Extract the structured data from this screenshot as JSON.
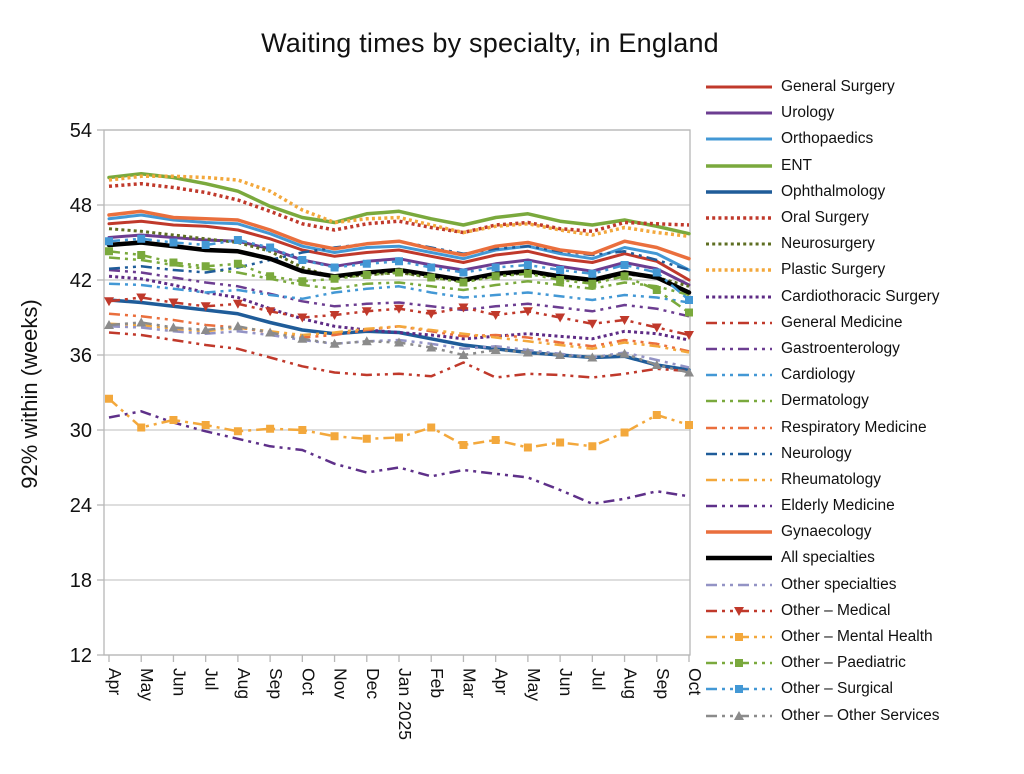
{
  "title": "Waiting times by specialty, in England",
  "chart_data": {
    "type": "line",
    "title": "Waiting times by specialty, in England",
    "xlabel": "",
    "ylabel": "92% within (weeks)",
    "ylim": [
      12,
      54
    ],
    "yticks": [
      12,
      18,
      24,
      30,
      36,
      42,
      48,
      54
    ],
    "grid": "horizontal",
    "legend_position": "right",
    "x": [
      "Apr",
      "May",
      "Jun",
      "Jul",
      "Aug",
      "Sep",
      "Oct",
      "Nov",
      "Dec",
      "Jan 2025",
      "Feb",
      "Mar",
      "Apr",
      "May",
      "Jun",
      "Jul",
      "Aug",
      "Sep",
      "Oct"
    ],
    "series": [
      {
        "name": "General Surgery",
        "color": "#c0392b",
        "style": "solid",
        "width": 3,
        "marker": "none",
        "values": [
          46.5,
          46.7,
          46.4,
          46.3,
          46.0,
          45.3,
          44.4,
          43.9,
          44.2,
          44.4,
          43.9,
          43.4,
          44.0,
          44.3,
          43.7,
          43.4,
          44.1,
          43.5,
          42.0
        ]
      },
      {
        "name": "Urology",
        "color": "#6c3d91",
        "style": "solid",
        "width": 3,
        "marker": "none",
        "values": [
          45.4,
          45.6,
          45.4,
          45.2,
          45.1,
          44.5,
          43.6,
          43.1,
          43.5,
          43.7,
          43.2,
          42.8,
          43.3,
          43.6,
          43.1,
          42.7,
          43.4,
          42.9,
          41.6
        ]
      },
      {
        "name": "Orthopaedics",
        "color": "#4398d5",
        "style": "solid",
        "width": 3,
        "marker": "none",
        "values": [
          46.9,
          47.2,
          46.8,
          46.6,
          46.5,
          45.7,
          44.7,
          44.2,
          44.6,
          44.7,
          44.2,
          43.7,
          44.4,
          44.7,
          44.1,
          43.7,
          44.6,
          44.1,
          42.8
        ]
      },
      {
        "name": "ENT",
        "color": "#7aa93d",
        "style": "solid",
        "width": 3.5,
        "marker": "none",
        "values": [
          50.2,
          50.5,
          50.2,
          49.7,
          49.1,
          47.9,
          47.0,
          46.6,
          47.3,
          47.5,
          46.9,
          46.4,
          47.0,
          47.3,
          46.7,
          46.4,
          46.8,
          46.3,
          45.7
        ]
      },
      {
        "name": "Ophthalmology",
        "color": "#1f5c99",
        "style": "solid",
        "width": 3.5,
        "marker": "none",
        "values": [
          40.4,
          40.2,
          39.9,
          39.6,
          39.3,
          38.6,
          38.0,
          37.7,
          37.9,
          37.8,
          37.3,
          36.8,
          36.5,
          36.2,
          36.0,
          35.8,
          35.9,
          35.2,
          34.8
        ]
      },
      {
        "name": "Oral Surgery",
        "color": "#c0392b",
        "style": "dotted",
        "width": 3.5,
        "marker": "none",
        "values": [
          49.5,
          49.7,
          49.4,
          49.0,
          48.4,
          47.5,
          46.5,
          46.0,
          46.5,
          46.7,
          46.2,
          45.8,
          46.4,
          46.6,
          46.1,
          45.9,
          46.6,
          46.5,
          46.4
        ]
      },
      {
        "name": "Neurosurgery",
        "color": "#5e6e22",
        "style": "dotted",
        "width": 3,
        "marker": "none",
        "values": [
          46.1,
          45.9,
          45.6,
          45.3,
          45.0,
          44.3,
          43.0,
          42.2,
          42.4,
          42.6,
          42.2,
          41.9,
          42.3,
          42.6,
          42.2,
          41.9,
          42.5,
          42.2,
          41.5
        ]
      },
      {
        "name": "Plastic Surgery",
        "color": "#f3a83c",
        "style": "dotted",
        "width": 3.5,
        "marker": "none",
        "values": [
          50.0,
          50.3,
          50.3,
          50.2,
          50.0,
          49.1,
          47.6,
          46.6,
          46.9,
          47.0,
          46.4,
          45.8,
          46.3,
          46.5,
          46.0,
          45.6,
          46.2,
          45.8,
          45.5
        ]
      },
      {
        "name": "Cardiothoracic Surgery",
        "color": "#5e2b85",
        "style": "dotted",
        "width": 3,
        "marker": "none",
        "values": [
          42.3,
          42.1,
          41.6,
          41.0,
          40.6,
          39.7,
          38.9,
          38.3,
          38.0,
          37.8,
          37.6,
          37.3,
          37.5,
          37.7,
          37.5,
          37.3,
          37.9,
          37.7,
          37.2
        ]
      },
      {
        "name": "General Medicine",
        "color": "#c0392b",
        "style": "dashdot",
        "width": 2.5,
        "marker": "none",
        "values": [
          37.8,
          37.6,
          37.2,
          36.8,
          36.5,
          35.8,
          35.1,
          34.6,
          34.4,
          34.5,
          34.3,
          35.4,
          34.2,
          34.5,
          34.4,
          34.2,
          34.5,
          34.9,
          34.7
        ]
      },
      {
        "name": "Gastroenterology",
        "color": "#6c3d91",
        "style": "dashdot",
        "width": 2.5,
        "marker": "none",
        "values": [
          42.8,
          42.6,
          42.2,
          41.8,
          41.5,
          40.9,
          40.3,
          39.9,
          40.1,
          40.2,
          39.9,
          39.6,
          39.9,
          40.1,
          39.8,
          39.5,
          40.0,
          39.7,
          39.1
        ]
      },
      {
        "name": "Cardiology",
        "color": "#4398d5",
        "style": "dashdot",
        "width": 2.5,
        "marker": "none",
        "values": [
          41.7,
          41.6,
          41.3,
          41.0,
          41.2,
          40.8,
          40.5,
          41.0,
          41.3,
          41.5,
          41.0,
          40.6,
          40.8,
          41.0,
          40.7,
          40.4,
          40.8,
          40.6,
          40.2
        ]
      },
      {
        "name": "Dermatology",
        "color": "#7aa93d",
        "style": "dashdot",
        "width": 2.5,
        "marker": "none",
        "values": [
          43.8,
          43.6,
          43.2,
          42.9,
          42.6,
          42.1,
          41.6,
          41.3,
          41.7,
          41.8,
          41.5,
          41.2,
          41.6,
          41.9,
          41.6,
          41.3,
          41.8,
          41.5,
          40.8
        ]
      },
      {
        "name": "Respiratory Medicine",
        "color": "#ea6f3d",
        "style": "dashdot",
        "width": 2.5,
        "marker": "none",
        "values": [
          39.3,
          39.1,
          38.8,
          38.4,
          38.2,
          37.8,
          37.4,
          37.6,
          38.0,
          38.3,
          37.9,
          37.5,
          37.6,
          37.4,
          37.0,
          36.7,
          37.2,
          36.9,
          36.3
        ]
      },
      {
        "name": "Neurology",
        "color": "#1f5c99",
        "style": "dashdot",
        "width": 2.5,
        "marker": "none",
        "values": [
          42.9,
          43.1,
          42.8,
          42.6,
          43.0,
          43.6,
          44.2,
          44.6,
          44.9,
          45.1,
          44.6,
          44.1,
          44.5,
          44.7,
          44.3,
          44.0,
          44.3,
          43.6,
          42.8
        ]
      },
      {
        "name": "Rheumatology",
        "color": "#f3a83c",
        "style": "dashdot",
        "width": 2.5,
        "marker": "none",
        "values": [
          38.5,
          38.4,
          38.1,
          37.9,
          38.2,
          37.9,
          37.6,
          37.8,
          38.1,
          38.3,
          38.0,
          37.7,
          37.4,
          37.1,
          36.8,
          36.5,
          37.0,
          36.7,
          36.2
        ]
      },
      {
        "name": "Elderly Medicine",
        "color": "#5e3089",
        "style": "dashdot",
        "width": 2.5,
        "marker": "none",
        "values": [
          31.0,
          31.5,
          30.6,
          29.9,
          29.3,
          28.7,
          28.4,
          27.3,
          26.6,
          27.0,
          26.3,
          26.8,
          26.5,
          26.2,
          25.2,
          24.1,
          24.5,
          25.1,
          24.7
        ]
      },
      {
        "name": "Gynaecology",
        "color": "#ea6f3d",
        "style": "solid",
        "width": 3.5,
        "marker": "none",
        "values": [
          47.2,
          47.5,
          47.0,
          46.9,
          46.8,
          46.0,
          45.0,
          44.5,
          44.9,
          45.1,
          44.5,
          44.0,
          44.7,
          45.0,
          44.4,
          44.1,
          45.1,
          44.6,
          43.7
        ]
      },
      {
        "name": "All specialties",
        "color": "#000000",
        "style": "solid",
        "width": 4.5,
        "marker": "none",
        "values": [
          44.8,
          45.0,
          44.7,
          44.4,
          44.3,
          43.7,
          42.7,
          42.3,
          42.6,
          42.8,
          42.4,
          42.0,
          42.5,
          42.7,
          42.3,
          42.0,
          42.6,
          42.2,
          41.0
        ]
      },
      {
        "name": "Other specialties",
        "color": "#9393c5",
        "style": "dashdot",
        "width": 2.5,
        "marker": "none",
        "values": [
          38.3,
          38.2,
          37.9,
          37.7,
          37.9,
          37.6,
          37.2,
          36.9,
          37.1,
          37.2,
          36.9,
          36.5,
          36.7,
          36.4,
          36.1,
          35.8,
          36.2,
          35.6,
          35.0
        ]
      },
      {
        "name": "Other – Medical",
        "color": "#c0392b",
        "style": "dashdot",
        "width": 2.5,
        "marker": "triangle-down",
        "values": [
          40.3,
          40.6,
          40.2,
          39.9,
          40.1,
          39.5,
          39.0,
          39.2,
          39.5,
          39.7,
          39.3,
          39.8,
          39.2,
          39.5,
          39.0,
          38.5,
          38.8,
          38.2,
          37.6
        ]
      },
      {
        "name": "Other – Mental Health",
        "color": "#f3a83c",
        "style": "dashdot",
        "width": 2.5,
        "marker": "square",
        "values": [
          32.5,
          30.2,
          30.8,
          30.4,
          29.9,
          30.1,
          30.0,
          29.5,
          29.3,
          29.4,
          30.2,
          28.8,
          29.2,
          28.6,
          29.0,
          28.7,
          29.8,
          31.2,
          30.4
        ]
      },
      {
        "name": "Other – Paediatric",
        "color": "#7aa93d",
        "style": "dashdot",
        "width": 2.5,
        "marker": "square",
        "values": [
          44.3,
          44.0,
          43.4,
          43.1,
          43.3,
          42.3,
          41.9,
          42.1,
          42.4,
          42.6,
          42.2,
          41.8,
          42.3,
          42.5,
          42.0,
          41.7,
          42.3,
          41.2,
          39.4
        ]
      },
      {
        "name": "Other – Surgical",
        "color": "#4398d5",
        "style": "dashdot",
        "width": 2.5,
        "marker": "square",
        "values": [
          45.1,
          45.3,
          45.0,
          44.8,
          45.2,
          44.6,
          43.6,
          43.0,
          43.3,
          43.5,
          43.0,
          42.6,
          43.0,
          43.2,
          42.8,
          42.5,
          43.2,
          42.6,
          40.4
        ]
      },
      {
        "name": "Other – Other Services",
        "color": "#8b8b8b",
        "style": "dashdot",
        "width": 2.5,
        "marker": "triangle-up",
        "values": [
          38.4,
          38.6,
          38.2,
          38.0,
          38.3,
          37.8,
          37.3,
          36.9,
          37.1,
          37.0,
          36.6,
          36.0,
          36.4,
          36.2,
          36.0,
          35.8,
          36.1,
          35.2,
          34.6
        ]
      }
    ]
  }
}
